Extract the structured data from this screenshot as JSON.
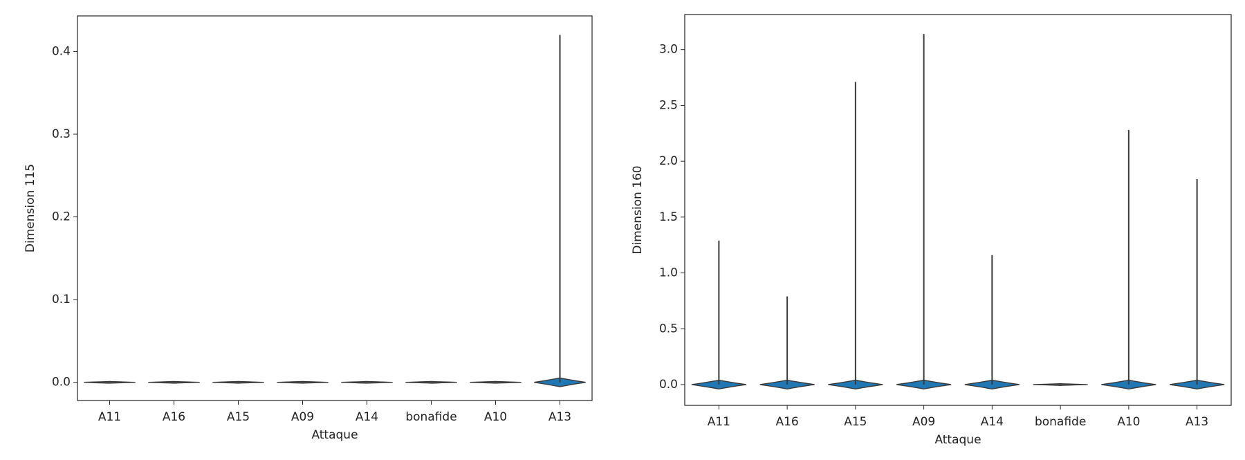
{
  "chart_data": [
    {
      "type": "violin",
      "xlabel": "Attaque",
      "ylabel": "Dimension 115",
      "categories": [
        "A11",
        "A16",
        "A15",
        "A09",
        "A14",
        "bonafide",
        "A10",
        "A13"
      ],
      "values": [
        0,
        0,
        0,
        0,
        0,
        0,
        0,
        0.42
      ],
      "color": "#1f77b4",
      "ylim": [
        -0.022,
        0.443
      ],
      "yticks": [
        {
          "value": 0,
          "label": "0.0"
        },
        0.1,
        0.2,
        0.3,
        0.4
      ]
    },
    {
      "type": "violin",
      "xlabel": "Attaque",
      "ylabel": "Dimension 160",
      "categories": [
        "A11",
        "A16",
        "A15",
        "A09",
        "A14",
        "bonafide",
        "A10",
        "A13"
      ],
      "values": [
        1.29,
        0.79,
        2.71,
        3.14,
        1.16,
        0,
        2.28,
        1.84
      ],
      "color": "#1f77b4",
      "ylim": [
        -0.186,
        3.314
      ],
      "yticks": [
        {
          "value": 0,
          "label": "0.0"
        },
        0.5,
        {
          "value": 1,
          "label": "1.0"
        },
        1.5,
        {
          "value": 2,
          "label": "2.0"
        },
        2.5,
        {
          "value": 3,
          "label": "3.0"
        }
      ]
    }
  ]
}
